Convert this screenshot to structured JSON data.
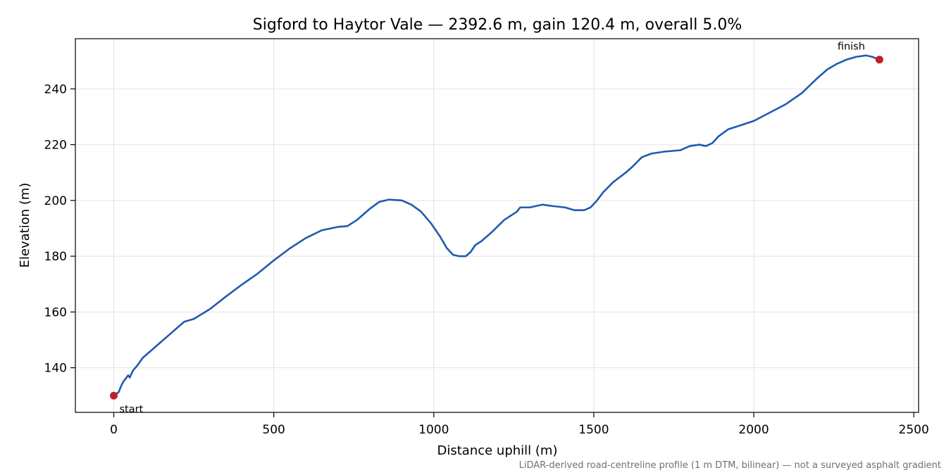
{
  "chart_data": {
    "type": "line",
    "title": "Sigford to Haytor Vale — 2392.6 m, gain 120.4 m, overall 5.0%",
    "xlabel": "Distance uphill (m)",
    "ylabel": "Elevation (m)",
    "xlim": [
      -120,
      2515
    ],
    "ylim": [
      124,
      258
    ],
    "xticks": [
      0,
      500,
      1000,
      1500,
      2000,
      2500
    ],
    "xtick_labels": [
      "0",
      "500",
      "1000",
      "1500",
      "2000",
      "2500"
    ],
    "yticks": [
      140,
      160,
      180,
      200,
      220,
      240
    ],
    "ytick_labels": [
      "140",
      "160",
      "180",
      "200",
      "220",
      "240"
    ],
    "grid": true,
    "footnote": "LiDAR-derived road-centreline profile (1 m DTM, bilinear) — not a surveyed asphalt gradient",
    "colors": {
      "line": "#1f5bb0",
      "marker": "#c0202a",
      "grid": "#e2e2e2"
    },
    "series": [
      {
        "x": [
          0,
          15,
          25,
          30,
          45,
          50,
          55,
          60,
          75,
          90,
          100,
          120,
          140,
          160,
          180,
          200,
          220,
          250,
          300,
          350,
          400,
          450,
          500,
          550,
          600,
          650,
          700,
          730,
          760,
          800,
          830,
          860,
          900,
          930,
          960,
          990,
          1020,
          1040,
          1060,
          1080,
          1100,
          1115,
          1130,
          1150,
          1180,
          1220,
          1260,
          1270,
          1300,
          1340,
          1370,
          1410,
          1440,
          1470,
          1490,
          1510,
          1530,
          1560,
          1600,
          1620,
          1650,
          1680,
          1720,
          1770,
          1800,
          1830,
          1850,
          1870,
          1890,
          1920,
          1960,
          2000,
          2050,
          2100,
          2150,
          2200,
          2230,
          2260,
          2290,
          2320,
          2350,
          2370,
          2392.6
        ],
        "y": [
          130.0,
          131.2,
          134.0,
          135.0,
          137.3,
          136.5,
          137.8,
          139.0,
          141.0,
          143.5,
          144.5,
          146.5,
          148.5,
          150.5,
          152.5,
          154.5,
          156.5,
          157.5,
          161.0,
          165.5,
          169.8,
          173.8,
          178.5,
          182.8,
          186.5,
          189.3,
          190.5,
          190.8,
          193.0,
          197.0,
          199.5,
          200.3,
          200.0,
          198.5,
          196.0,
          192.0,
          187.0,
          183.0,
          180.5,
          180.0,
          180.0,
          181.5,
          184.0,
          185.5,
          188.5,
          193.0,
          196.0,
          197.5,
          197.5,
          198.5,
          198.0,
          197.5,
          196.5,
          196.5,
          197.5,
          200.0,
          203.0,
          206.5,
          210.0,
          212.0,
          215.5,
          216.8,
          217.5,
          218.0,
          219.5,
          220.0,
          219.5,
          220.5,
          223.0,
          225.5,
          227.0,
          228.5,
          231.5,
          234.5,
          238.5,
          244.0,
          247.0,
          249.0,
          250.5,
          251.5,
          252.0,
          251.5,
          250.5
        ]
      }
    ],
    "markers": [
      {
        "label": "start",
        "x": 0,
        "y": 130.0
      },
      {
        "label": "finish",
        "x": 2392.6,
        "y": 250.5
      }
    ]
  }
}
